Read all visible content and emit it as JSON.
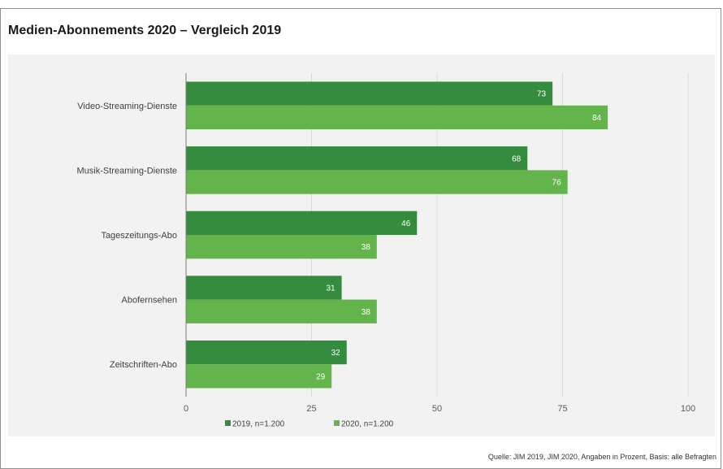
{
  "chart_data": {
    "type": "bar",
    "orientation": "horizontal",
    "title": "Medien-Abonnements 2020 – Vergleich 2019",
    "categories": [
      "Video-Streaming-Dienste",
      "Musik-Streaming-Dienste",
      "Tageszeitungs-Abo",
      "Abofernsehen",
      "Zeitschriften-Abo"
    ],
    "series": [
      {
        "name": "2019, n=1.200",
        "values": [
          73,
          68,
          46,
          31,
          32
        ],
        "color": "#358c3e"
      },
      {
        "name": "2020, n=1.200",
        "values": [
          84,
          76,
          38,
          38,
          29
        ],
        "color": "#63b54b"
      }
    ],
    "xlim": [
      0,
      100
    ],
    "xticks": [
      0,
      25,
      50,
      75,
      100
    ],
    "grid": true,
    "data_labels": true,
    "legend_position": "bottom",
    "source": "Quelle: JIM 2019, JIM 2020, Angaben in Prozent, Basis: alle Befragten"
  }
}
